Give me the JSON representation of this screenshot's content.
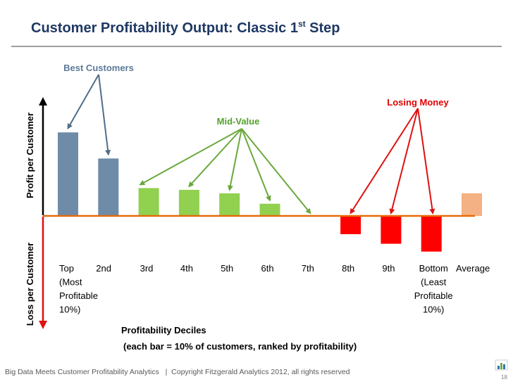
{
  "slide": {
    "title_main": "Customer Profitability Output:  Classic 1",
    "title_sup": "st",
    "title_end": " Step",
    "footer": "Big Data Meets Customer Profitability Analytics   |  Copyright Fitzgerald Analytics 2012, all rights reserved",
    "page_number": "18",
    "logo_icon": "bar-chart-logo-icon"
  },
  "colors": {
    "title": "#1f3864",
    "top_bar": "#6e8ca7",
    "mid_bar": "#92d050",
    "losing_bar": "#ff0000",
    "average_bar": "#f4b183",
    "baseline": "#e46c0a",
    "best_label": "#5b7a99",
    "mid_label": "#55a12c",
    "losing_label": "#e00000",
    "best_arrow": "#4f6d8a",
    "mid_arrow": "#6aa83c",
    "losing_arrow": "#dd1111",
    "axis_up": "#000000",
    "axis_down": "#e01010"
  },
  "chart_data": {
    "type": "bar",
    "categories": [
      "Top (Most Profitable 10%)",
      "2nd",
      "3rd",
      "4th",
      "5th",
      "6th",
      "7th",
      "8th",
      "9th",
      "Bottom (Least Profitable 10%)",
      "Average"
    ],
    "values": [
      9.6,
      6.6,
      3.2,
      3.0,
      2.6,
      1.4,
      0.0,
      -2.1,
      -3.2,
      -4.1,
      2.6
    ],
    "bar_groups": [
      "best",
      "best",
      "mid",
      "mid",
      "mid",
      "mid",
      "mid",
      "losing",
      "losing",
      "losing",
      "average"
    ],
    "ylim": [
      -11,
      13.5
    ],
    "ylabel_positive": "Profit per Customer",
    "ylabel_negative": "Loss per Customer",
    "xlabel": "Profitability Deciles",
    "xlabel_note": "(each bar = 10% of customers, ranked by profitability)",
    "annotations": [
      {
        "label": "Best Customers",
        "group": "best",
        "targets": [
          0,
          1
        ]
      },
      {
        "label": "Mid-Value",
        "group": "mid",
        "targets": [
          2,
          3,
          4,
          5,
          6
        ]
      },
      {
        "label": "Losing Money",
        "group": "losing",
        "targets": [
          7,
          8,
          9
        ]
      }
    ],
    "tick_labels": [
      {
        "lines": [
          "Top",
          "(Most",
          "Profitable",
          "10%)"
        ],
        "align": "start"
      },
      {
        "lines": [
          "2nd"
        ],
        "align": "start"
      },
      {
        "lines": [
          "3rd"
        ],
        "align": "start"
      },
      {
        "lines": [
          "4th"
        ],
        "align": "start"
      },
      {
        "lines": [
          "5th"
        ],
        "align": "start"
      },
      {
        "lines": [
          "6th"
        ],
        "align": "start"
      },
      {
        "lines": [
          "7th"
        ],
        "align": "start"
      },
      {
        "lines": [
          "8th"
        ],
        "align": "start"
      },
      {
        "lines": [
          "9th"
        ],
        "align": "start"
      },
      {
        "lines": [
          "Bottom",
          "(Least",
          "Profitable",
          "10%)"
        ],
        "align": "middle"
      },
      {
        "lines": [
          "Average"
        ],
        "align": "start"
      }
    ]
  }
}
